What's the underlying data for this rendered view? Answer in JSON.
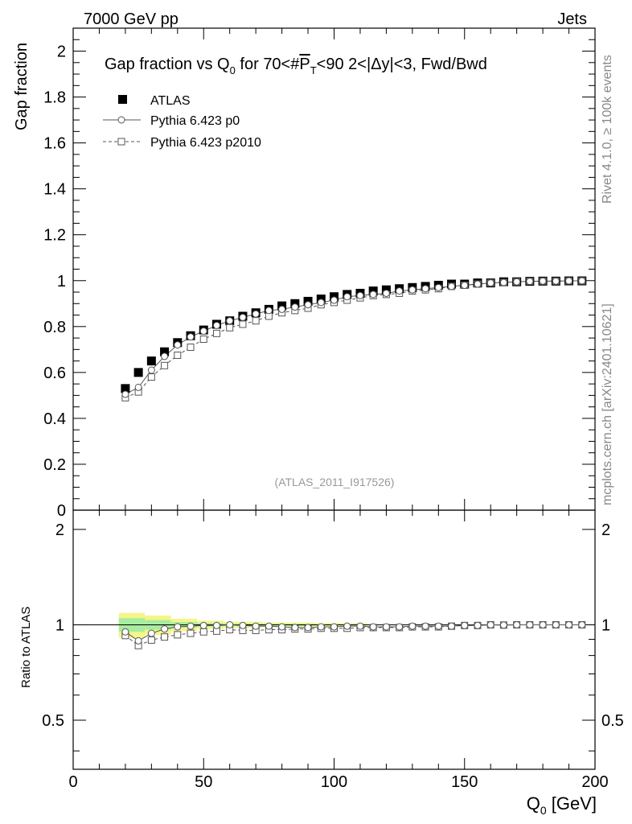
{
  "header": {
    "left": "7000 GeV pp",
    "right": "Jets"
  },
  "side_labels": {
    "top": "Rivet 4.1.0, ≥ 100k events",
    "bottom": "mcplots.cern.ch [arXiv:2401.10621]"
  },
  "chart_data": {
    "type": "scatter",
    "title": {
      "pre": "Gap fraction vs Q",
      "sub": "0",
      "mid": " for 70<#",
      "overline": "P",
      "over_sub": "T",
      "post": "<90  2<|Δy|<3, Fwd/Bwd"
    },
    "xlabel": {
      "main": "Q",
      "sub": "0",
      "unit": " [GeV]"
    },
    "ylabel_main": "Gap fraction",
    "ylabel_ratio": "Ratio to ATLAS",
    "analysis_id": "(ATLAS_2011_I917526)",
    "xlim": [
      0,
      200
    ],
    "ylim_main": [
      0,
      2.1
    ],
    "ylim_ratio": [
      0.35,
      2.3
    ],
    "x_ticks": [
      "0",
      "50",
      "100",
      "150",
      "200"
    ],
    "y_ticks_main": [
      "0",
      "0.2",
      "0.4",
      "0.6",
      "0.8",
      "1",
      "1.2",
      "1.4",
      "1.6",
      "1.8",
      "2"
    ],
    "y_ticks_ratio": [
      "0.5",
      "1",
      "2"
    ],
    "x": [
      20,
      25,
      30,
      35,
      40,
      45,
      50,
      55,
      60,
      65,
      70,
      75,
      80,
      85,
      90,
      95,
      100,
      105,
      110,
      115,
      120,
      125,
      130,
      135,
      140,
      145,
      150,
      155,
      160,
      165,
      170,
      175,
      180,
      185,
      190,
      195
    ],
    "series": [
      {
        "name": "ATLAS",
        "marker": "filled-square",
        "color": "#000000",
        "values": [
          0.53,
          0.6,
          0.65,
          0.69,
          0.73,
          0.76,
          0.785,
          0.81,
          0.825,
          0.845,
          0.86,
          0.875,
          0.89,
          0.9,
          0.91,
          0.92,
          0.93,
          0.94,
          0.945,
          0.955,
          0.96,
          0.965,
          0.97,
          0.975,
          0.98,
          0.985,
          0.985,
          0.99,
          0.99,
          0.995,
          0.995,
          0.997,
          0.998,
          0.998,
          0.999,
          0.999
        ]
      },
      {
        "name": "Pythia 6.423 p0",
        "marker": "open-circle",
        "line": "solid",
        "color": "#555555",
        "values": [
          0.505,
          0.535,
          0.61,
          0.67,
          0.72,
          0.755,
          0.78,
          0.805,
          0.825,
          0.84,
          0.855,
          0.87,
          0.875,
          0.885,
          0.895,
          0.905,
          0.915,
          0.93,
          0.935,
          0.94,
          0.945,
          0.955,
          0.96,
          0.965,
          0.97,
          0.975,
          0.98,
          0.985,
          0.99,
          0.992,
          0.995,
          0.997,
          0.998,
          0.998,
          0.999,
          0.999
        ]
      },
      {
        "name": "Pythia 6.423 p2010",
        "marker": "open-square",
        "line": "dashed",
        "color": "#555555",
        "values": [
          0.49,
          0.515,
          0.58,
          0.63,
          0.675,
          0.71,
          0.745,
          0.77,
          0.795,
          0.81,
          0.825,
          0.845,
          0.86,
          0.87,
          0.88,
          0.895,
          0.905,
          0.915,
          0.925,
          0.935,
          0.94,
          0.945,
          0.955,
          0.96,
          0.965,
          0.975,
          0.98,
          0.985,
          0.99,
          0.992,
          0.995,
          0.997,
          0.998,
          0.998,
          0.999,
          0.999
        ]
      }
    ],
    "ratio": [
      {
        "name": "Pythia 6.423 p0",
        "values": [
          0.95,
          0.89,
          0.94,
          0.97,
          0.985,
          0.99,
          0.995,
          0.995,
          1.0,
          0.995,
          0.99,
          0.99,
          0.985,
          0.98,
          0.98,
          0.985,
          0.985,
          0.99,
          0.99,
          0.985,
          0.985,
          0.985,
          0.99,
          0.99,
          0.99,
          0.99,
          0.995,
          0.995,
          1.0,
          0.998,
          1.0,
          1.0,
          1.0,
          1.0,
          1.0,
          1.0
        ]
      },
      {
        "name": "Pythia 6.423 p2010",
        "values": [
          0.925,
          0.86,
          0.895,
          0.915,
          0.93,
          0.94,
          0.95,
          0.955,
          0.965,
          0.96,
          0.96,
          0.965,
          0.965,
          0.97,
          0.97,
          0.975,
          0.975,
          0.975,
          0.98,
          0.98,
          0.98,
          0.98,
          0.985,
          0.985,
          0.985,
          0.99,
          0.995,
          0.995,
          1.0,
          0.998,
          1.0,
          1.0,
          1.0,
          1.0,
          1.0,
          1.0
        ]
      }
    ],
    "uncertainty_band": {
      "x_edges": [
        17.5,
        27.5,
        37.5,
        47.5,
        57.5,
        72.5,
        92.5,
        112.5
      ],
      "yellow_half": [
        0.09,
        0.07,
        0.045,
        0.03,
        0.022,
        0.016,
        0.012
      ],
      "green_half": [
        0.05,
        0.035,
        0.02,
        0.013,
        0.009,
        0.007,
        0.005
      ],
      "colors": {
        "yellow": "#f5f58a",
        "green": "#a8ec9f"
      }
    }
  }
}
